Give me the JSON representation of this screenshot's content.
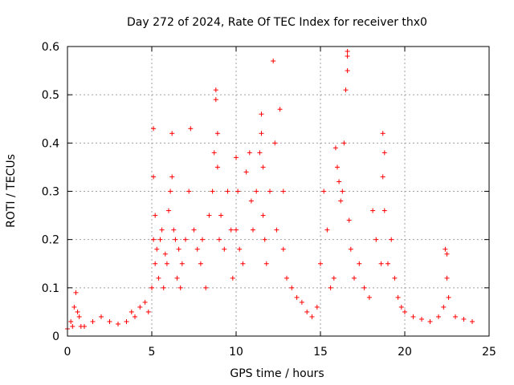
{
  "chart_data": {
    "type": "scatter",
    "title": "Day 272 of 2024, Rate Of TEC Index for receiver thx0",
    "xlabel": "GPS time / hours",
    "ylabel": "ROTI / TECUs",
    "xlim": [
      0,
      25
    ],
    "ylim": [
      0,
      0.6
    ],
    "xticks": [
      "0",
      "5",
      "10",
      "15",
      "20",
      "25"
    ],
    "yticks": [
      "0",
      "0.1",
      "0.2",
      "0.3",
      "0.4",
      "0.5",
      "0.6"
    ],
    "grid": true,
    "marker": "plus",
    "color": "#ff0000",
    "series": [
      {
        "x": [
          0.0,
          0.2,
          0.3,
          0.4,
          0.5,
          0.6,
          0.7,
          0.8,
          1.0,
          1.5,
          2.0,
          2.5,
          3.0,
          3.5,
          3.8,
          4.0,
          4.3,
          4.6,
          4.8,
          5.0,
          5.1,
          5.1,
          5.1,
          5.2,
          5.2,
          5.3,
          5.4,
          5.5,
          5.6,
          5.7,
          5.8,
          5.9,
          6.0,
          6.1,
          6.2,
          6.2,
          6.3,
          6.4,
          6.5,
          6.6,
          6.7,
          6.8,
          7.0,
          7.2,
          7.3,
          7.5,
          7.7,
          7.9,
          8.0,
          8.2,
          8.4,
          8.6,
          8.7,
          8.8,
          8.8,
          8.9,
          8.9,
          9.0,
          9.1,
          9.3,
          9.5,
          9.7,
          9.8,
          10.0,
          10.0,
          10.1,
          10.2,
          10.4,
          10.6,
          10.8,
          10.9,
          11.0,
          11.2,
          11.4,
          11.5,
          11.5,
          11.6,
          11.6,
          11.7,
          11.8,
          12.0,
          12.2,
          12.3,
          12.4,
          12.6,
          12.8,
          12.8,
          13.0,
          13.3,
          13.6,
          13.9,
          14.2,
          14.5,
          14.8,
          15.0,
          15.2,
          15.4,
          15.6,
          15.8,
          15.9,
          16.0,
          16.1,
          16.2,
          16.3,
          16.4,
          16.5,
          16.6,
          16.6,
          16.6,
          16.7,
          16.8,
          17.0,
          17.3,
          17.6,
          17.9,
          18.1,
          18.3,
          18.6,
          18.7,
          18.7,
          18.8,
          18.8,
          19.0,
          19.2,
          19.4,
          19.6,
          19.8,
          20.0,
          20.5,
          21.0,
          21.5,
          22.0,
          22.3,
          22.4,
          22.5,
          22.5,
          22.6,
          23.0,
          23.5,
          24.0
        ],
        "y": [
          0.015,
          0.03,
          0.02,
          0.06,
          0.09,
          0.05,
          0.04,
          0.02,
          0.02,
          0.03,
          0.04,
          0.03,
          0.025,
          0.03,
          0.05,
          0.04,
          0.06,
          0.07,
          0.05,
          0.1,
          0.2,
          0.33,
          0.43,
          0.25,
          0.15,
          0.18,
          0.12,
          0.2,
          0.22,
          0.1,
          0.17,
          0.15,
          0.26,
          0.3,
          0.42,
          0.33,
          0.22,
          0.2,
          0.12,
          0.18,
          0.1,
          0.15,
          0.2,
          0.3,
          0.43,
          0.22,
          0.18,
          0.15,
          0.2,
          0.1,
          0.25,
          0.3,
          0.38,
          0.49,
          0.51,
          0.42,
          0.35,
          0.2,
          0.25,
          0.18,
          0.3,
          0.22,
          0.12,
          0.37,
          0.22,
          0.3,
          0.18,
          0.15,
          0.34,
          0.38,
          0.28,
          0.22,
          0.3,
          0.38,
          0.46,
          0.42,
          0.35,
          0.25,
          0.2,
          0.15,
          0.3,
          0.57,
          0.4,
          0.22,
          0.47,
          0.3,
          0.18,
          0.12,
          0.1,
          0.08,
          0.07,
          0.05,
          0.04,
          0.06,
          0.15,
          0.3,
          0.22,
          0.1,
          0.12,
          0.39,
          0.35,
          0.32,
          0.28,
          0.3,
          0.4,
          0.51,
          0.55,
          0.58,
          0.59,
          0.24,
          0.18,
          0.12,
          0.15,
          0.1,
          0.08,
          0.26,
          0.2,
          0.15,
          0.42,
          0.33,
          0.38,
          0.26,
          0.15,
          0.2,
          0.12,
          0.08,
          0.06,
          0.05,
          0.04,
          0.035,
          0.03,
          0.04,
          0.06,
          0.18,
          0.17,
          0.12,
          0.08,
          0.04,
          0.035,
          0.03
        ]
      }
    ]
  }
}
